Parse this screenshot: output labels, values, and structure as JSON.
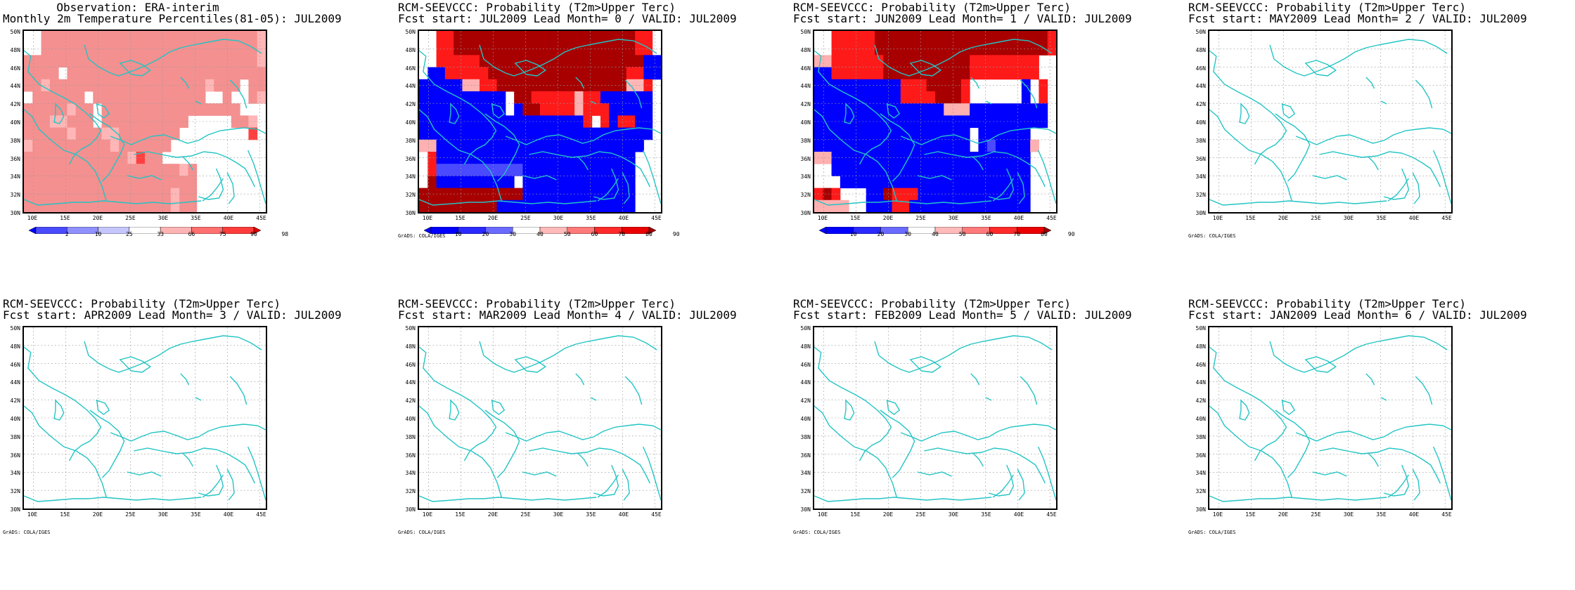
{
  "credit": "GrADS: COLA/IGES",
  "axes": {
    "lat_labels": [
      "50N",
      "48N",
      "46N",
      "44N",
      "42N",
      "40N",
      "38N",
      "36N",
      "34N",
      "32N",
      "30N"
    ],
    "lon_labels": [
      "10E",
      "15E",
      "20E",
      "25E",
      "30E",
      "35E",
      "40E",
      "45E"
    ]
  },
  "panels": [
    {
      "title1": "Observation: ERA-interim",
      "title2": "Monthly 2m Temperature Percentiles(81-05): JUL2009",
      "colorbar_labels": [
        "2",
        "10",
        "25",
        "33",
        "66",
        "75",
        "90",
        "98"
      ],
      "colorbar_colors": [
        "#0000ff",
        "#4a4aff",
        "#9090ff",
        "#c6c6ff",
        "#ffffff",
        "#ffb4b4",
        "#ff7070",
        "#ff3c3c",
        "#e00000"
      ],
      "has_data": true,
      "credit": ""
    },
    {
      "title1": "RCM-SEEVCCC: Probability (T2m>Upper Terc)",
      "title2": "Fcst start: JUL2009  Lead Month= 0 / VALID: JUL2009",
      "colorbar_labels": [
        "10",
        "20",
        "30",
        "40",
        "50",
        "60",
        "70",
        "80",
        "90"
      ],
      "colorbar_colors": [
        "#0000ff",
        "#0000ff",
        "#2a2aff",
        "#6a6aff",
        "#ffffff",
        "#ffbaba",
        "#ff7a7a",
        "#ff2a2a",
        "#ea0000",
        "#a00000"
      ],
      "has_data": true,
      "credit": "GrADS: COLA/IGES"
    },
    {
      "title1": "RCM-SEEVCCC: Probability (T2m>Upper Terc)",
      "title2": "Fcst start: JUN2009  Lead Month= 1 / VALID: JUL2009",
      "colorbar_labels": [
        "10",
        "20",
        "30",
        "40",
        "50",
        "60",
        "70",
        "80",
        "90"
      ],
      "colorbar_colors": [
        "#0000ff",
        "#0000ff",
        "#2a2aff",
        "#6a6aff",
        "#ffffff",
        "#ffbaba",
        "#ff7a7a",
        "#ff2a2a",
        "#ea0000",
        "#a00000"
      ],
      "has_data": true,
      "credit": ""
    },
    {
      "title1": "RCM-SEEVCCC: Probability (T2m>Upper Terc)",
      "title2": "Fcst start: MAY2009  Lead Month= 2 / VALID: JUL2009",
      "colorbar_labels": [],
      "colorbar_colors": [],
      "has_data": false,
      "credit": "GrADS: COLA/IGES"
    },
    {
      "title1": "RCM-SEEVCCC: Probability (T2m>Upper Terc)",
      "title2": "Fcst start: APR2009  Lead Month= 3 / VALID: JUL2009",
      "colorbar_labels": [],
      "colorbar_colors": [],
      "has_data": false,
      "credit": "GrADS: COLA/IGES"
    },
    {
      "title1": "RCM-SEEVCCC: Probability (T2m>Upper Terc)",
      "title2": "Fcst start: MAR2009  Lead Month= 4 / VALID: JUL2009",
      "colorbar_labels": [],
      "colorbar_colors": [],
      "has_data": false,
      "credit": "GrADS: COLA/IGES"
    },
    {
      "title1": "RCM-SEEVCCC: Probability (T2m>Upper Terc)",
      "title2": "Fcst start: FEB2009  Lead Month= 5 / VALID: JUL2009",
      "colorbar_labels": [],
      "colorbar_colors": [],
      "has_data": false,
      "credit": "GrADS: COLA/IGES"
    },
    {
      "title1": "RCM-SEEVCCC: Probability (T2m>Upper Terc)",
      "title2": "Fcst start: JAN2009  Lead Month= 6 / VALID: JUL2009",
      "colorbar_labels": [],
      "colorbar_colors": [],
      "has_data": false,
      "credit": "GrADS: COLA/IGES"
    }
  ],
  "grids": {
    "obs": [
      "WWLLLLLLLLLLLLLLLLLLLLLLLLLM",
      "WWLLLLLLLLLLLLLLLLLLLLLLLLLM",
      "LLLLLLLLLLLLLLLLLLLLLLLLLLLM",
      "LLLLWLLLLLLLLLLLLLLLLLLLLLLL",
      "LLMLLLLLLLLLLLLLLLLLLMLLLWLL",
      "WLLLLLLWLLLLLLLLLLLLLWWLWWLM",
      "LLLLLMLLWLLLLLLLLLLLLLLLLWWW",
      "LLLMMLLLWLLLLLLLLLLWWWWWLLMW",
      "LLLLLMLLLMMLLLLLLLWWWWWWWWHW",
      "MLLLLLLLLLMLLLLLLWWWWWWWWWWW",
      "LLLLLLLLLLLLMHLLWWWWWWWWWWWW",
      "LLLLLLLLLLLLLLLLLLMLWWWWWWWW",
      "LLLLLLLLLLLLLLLLLLLLWWWWWWWW",
      "LLLLLLLLLLLLLLLLLMLLWWWWWWWW",
      "LLLLLLLLLLLLLLLLLMLLWWWWWWWW"
    ],
    "lead0": [
      "WWRRDDDDDDDDDDDDDDDDDDDDDRRW",
      "WWRRDDDDDDDDDDDDDDDDDDDDDRRW",
      "WWRRRRRDDDDDDDDDDDDDDDDDDDBB",
      "WBBRRRRRDDDDDDDDDDDDDDDDRRBB",
      "BBBBBPPRRDDDDDDDDDDDDDDDLLRW",
      "BBBBBBBBBBWDDRRRRRPRRBBBBBBW",
      "BBBBBBBBBBWBDDRRRRPRRRBBBBBW",
      "BBBBBBBBBBBBBBBBBBBRWRBRRBBW",
      "BBBBBBBBBBBBBBBBBBBBBBBBBBBW",
      "PPBBBBBBBBBBBBBBBBBBBBBBBBWW",
      "WRBBBBBBBBBBBBBBBBBBBBBBBWWW",
      "WRSSSSSSSSSSBBBBBBBBBBBBBWWW",
      "WDBBBBBBBBBWBBBBBBBBBBBBBWWW",
      "DDDDDDDDDDDDBBBBBBBBBBBBBWWW",
      "DDDDDDDDDBBBBBBBBBBBBBBBBWWW"
    ],
    "lead1": [
      "WWRRRRRDDDDDDDDDDDDDDDDDDDDR",
      "WWRRRRRDDDDDDDDDDDDDDDDDDDDR",
      "PPRRRRRRDDDDDDDDDDRRRRRRRRWW",
      "BBRRRRRRDDDDDDDDDDRRRRRRRRWW",
      "BBBBBBBBBBRRRDDDDRWWWWWWBWRW",
      "BBBBBBBBBBRRRRDDDRWWWWWWBWRW",
      "BBBBBBBBBBBBBBBPPPBBBBBBBBBW",
      "BBBBBBBBBBBBBBBBBBBBBBBBBBBW",
      "BBBBBBBBBBBBBBBBBBWBBBBBBWWW",
      "BBBBBBBBBBBBBBBBBBWBSBBBBPWW",
      "PPBBBBBBBBBBBBBBBBBBBBBBBWWW",
      "WWBBBBBBBBBBBBBBBBBBBBBBBWWW",
      "WWWBBBBBBBBBBBBBBBBBBBBBBWWW",
      "RDRWWWBBDRRRBBBBBBBBBBBBBWWW",
      "PPPPWWBBBRRBBBBBBBBBBBBBBWWW"
    ]
  }
}
